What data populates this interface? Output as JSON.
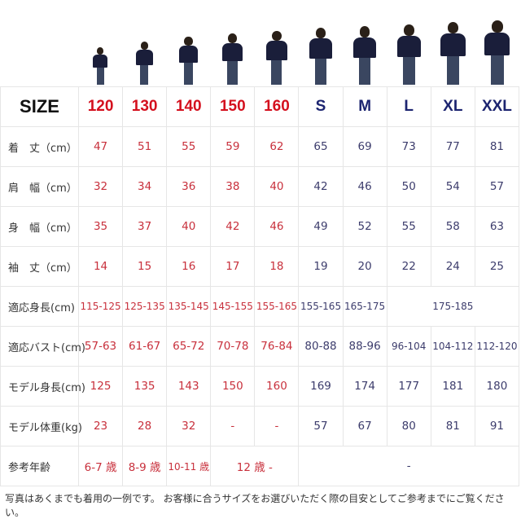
{
  "colors": {
    "kids": "#c8303c",
    "adult": "#3c3c6c",
    "kids_header": "#d4101e",
    "adult_header": "#1c2470"
  },
  "header": {
    "label": "SIZE",
    "sizes": [
      "120",
      "130",
      "140",
      "150",
      "160",
      "S",
      "M",
      "L",
      "XL",
      "XXL"
    ]
  },
  "rows": [
    {
      "label": "着　丈（cm）",
      "cells": [
        {
          "v": "47"
        },
        {
          "v": "51"
        },
        {
          "v": "55"
        },
        {
          "v": "59"
        },
        {
          "v": "62"
        },
        {
          "v": "65"
        },
        {
          "v": "69"
        },
        {
          "v": "73"
        },
        {
          "v": "77"
        },
        {
          "v": "81"
        }
      ]
    },
    {
      "label": "肩　幅（cm）",
      "cells": [
        {
          "v": "32"
        },
        {
          "v": "34"
        },
        {
          "v": "36"
        },
        {
          "v": "38"
        },
        {
          "v": "40"
        },
        {
          "v": "42"
        },
        {
          "v": "46"
        },
        {
          "v": "50"
        },
        {
          "v": "54"
        },
        {
          "v": "57"
        }
      ]
    },
    {
      "label": "身　幅（cm）",
      "cells": [
        {
          "v": "35"
        },
        {
          "v": "37"
        },
        {
          "v": "40"
        },
        {
          "v": "42"
        },
        {
          "v": "46"
        },
        {
          "v": "49"
        },
        {
          "v": "52"
        },
        {
          "v": "55"
        },
        {
          "v": "58"
        },
        {
          "v": "63"
        }
      ]
    },
    {
      "label": "袖　丈（cm）",
      "cells": [
        {
          "v": "14"
        },
        {
          "v": "15"
        },
        {
          "v": "16"
        },
        {
          "v": "17"
        },
        {
          "v": "18"
        },
        {
          "v": "19"
        },
        {
          "v": "20"
        },
        {
          "v": "22"
        },
        {
          "v": "24"
        },
        {
          "v": "25"
        }
      ]
    },
    {
      "label": "適応身長(cm)",
      "cells": [
        {
          "v": "115-125"
        },
        {
          "v": "125-135"
        },
        {
          "v": "135-145"
        },
        {
          "v": "145-155"
        },
        {
          "v": "155-165"
        },
        {
          "v": "155-165"
        },
        {
          "v": "165-175"
        },
        {
          "v": "175-185",
          "span": 3
        }
      ]
    },
    {
      "label": "適応バスト(cm)",
      "cells": [
        {
          "v": "57-63"
        },
        {
          "v": "61-67"
        },
        {
          "v": "65-72"
        },
        {
          "v": "70-78"
        },
        {
          "v": "76-84"
        },
        {
          "v": "80-88"
        },
        {
          "v": "88-96"
        },
        {
          "v": "96-104"
        },
        {
          "v": "104-112"
        },
        {
          "v": "112-120"
        }
      ]
    },
    {
      "label": "モデル身長(cm)",
      "cells": [
        {
          "v": "125"
        },
        {
          "v": "135"
        },
        {
          "v": "143"
        },
        {
          "v": "150"
        },
        {
          "v": "160"
        },
        {
          "v": "169"
        },
        {
          "v": "174"
        },
        {
          "v": "177"
        },
        {
          "v": "181"
        },
        {
          "v": "180"
        }
      ]
    },
    {
      "label": "モデル体重(kg)",
      "cells": [
        {
          "v": "23"
        },
        {
          "v": "28"
        },
        {
          "v": "32"
        },
        {
          "v": "-"
        },
        {
          "v": "-"
        },
        {
          "v": "57"
        },
        {
          "v": "67"
        },
        {
          "v": "80"
        },
        {
          "v": "81"
        },
        {
          "v": "91"
        }
      ]
    },
    {
      "label": "参考年齢",
      "cells": [
        {
          "v": "6-7 歳"
        },
        {
          "v": "8-9 歳"
        },
        {
          "v": "10-11 歳"
        },
        {
          "v": "12 歳 -",
          "span": 2
        },
        {
          "v": "-",
          "span": 5
        }
      ]
    }
  ],
  "note": "写真はあくまでも着用の一例です。 お客様に合うサイズをお選びいただく際の目安としてご参考までにご覧ください。"
}
